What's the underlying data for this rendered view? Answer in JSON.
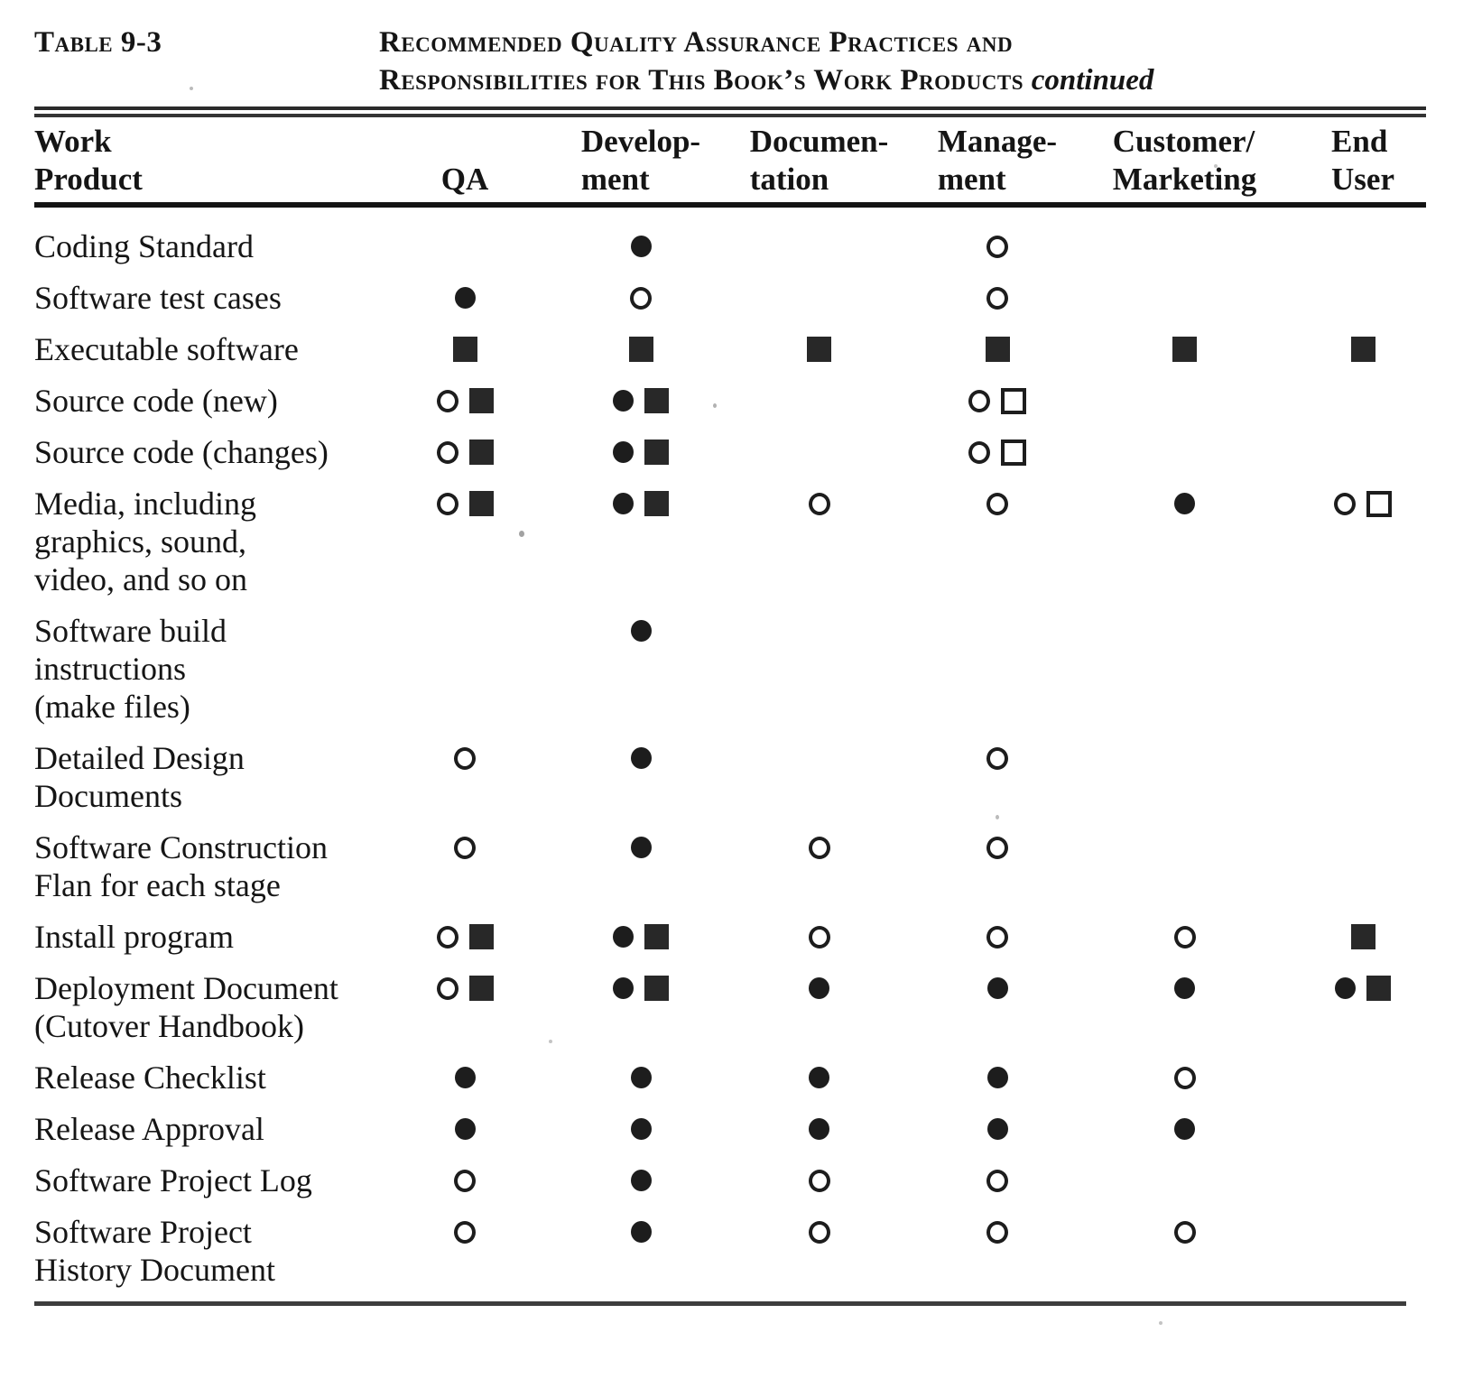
{
  "page": {
    "label": "Table 9-3",
    "title": {
      "line1": "Recommended Quality Assurance Practices and",
      "line2": "Responsibilities for This Book’s Work Products",
      "continued": "continued"
    }
  },
  "table": {
    "columns": [
      {
        "id": "work_product",
        "lines": [
          "Work",
          "Product"
        ]
      },
      {
        "id": "qa",
        "lines": [
          "QA"
        ]
      },
      {
        "id": "development",
        "lines": [
          "Develop-",
          "ment"
        ]
      },
      {
        "id": "documentation",
        "lines": [
          "Documen-",
          "tation"
        ]
      },
      {
        "id": "management",
        "lines": [
          "Manage-",
          "ment"
        ]
      },
      {
        "id": "customer_marketing",
        "lines": [
          "Customer/",
          "Marketing"
        ]
      },
      {
        "id": "end_user",
        "lines": [
          "End",
          "User"
        ]
      }
    ],
    "symbol_legend": {
      "fc": "filled-circle",
      "oc": "open-circle",
      "fs": "filled-square",
      "os": "open-square"
    },
    "rows": [
      {
        "product_lines": [
          "Coding Standard"
        ],
        "cells": [
          [],
          [
            "fc"
          ],
          [],
          [
            "oc"
          ],
          [],
          []
        ]
      },
      {
        "product_lines": [
          "Software test cases"
        ],
        "cells": [
          [
            "fc"
          ],
          [
            "oc"
          ],
          [],
          [
            "oc"
          ],
          [],
          []
        ]
      },
      {
        "product_lines": [
          "Executable software"
        ],
        "cells": [
          [
            "fs"
          ],
          [
            "fs"
          ],
          [
            "fs"
          ],
          [
            "fs"
          ],
          [
            "fs"
          ],
          [
            "fs"
          ]
        ]
      },
      {
        "product_lines": [
          "Source code (new)"
        ],
        "cells": [
          [
            "oc",
            "fs"
          ],
          [
            "fc",
            "fs"
          ],
          [],
          [
            "oc",
            "os"
          ],
          [],
          []
        ]
      },
      {
        "product_lines": [
          "Source code (changes)"
        ],
        "cells": [
          [
            "oc",
            "fs"
          ],
          [
            "fc",
            "fs"
          ],
          [],
          [
            "oc",
            "os"
          ],
          [],
          []
        ]
      },
      {
        "product_lines": [
          "Media, including",
          "graphics, sound,",
          "video, and so on"
        ],
        "cells": [
          [
            "oc",
            "fs"
          ],
          [
            "fc",
            "fs"
          ],
          [
            "oc"
          ],
          [
            "oc"
          ],
          [
            "fc"
          ],
          [
            "oc",
            "os"
          ]
        ]
      },
      {
        "product_lines": [
          "Software build",
          "instructions",
          "(make files)"
        ],
        "cells": [
          [],
          [
            "fc"
          ],
          [],
          [],
          [],
          []
        ]
      },
      {
        "product_lines": [
          "Detailed Design",
          "Documents"
        ],
        "cells": [
          [
            "oc"
          ],
          [
            "fc"
          ],
          [],
          [
            "oc"
          ],
          [],
          []
        ]
      },
      {
        "product_lines": [
          "Software Construction",
          "Flan for each stage"
        ],
        "cells": [
          [
            "oc"
          ],
          [
            "fc"
          ],
          [
            "oc"
          ],
          [
            "oc"
          ],
          [],
          []
        ]
      },
      {
        "product_lines": [
          "Install program"
        ],
        "cells": [
          [
            "oc",
            "fs"
          ],
          [
            "fc",
            "fs"
          ],
          [
            "oc"
          ],
          [
            "oc"
          ],
          [
            "oc"
          ],
          [
            "fs"
          ]
        ]
      },
      {
        "product_lines": [
          "Deployment Document",
          "(Cutover Handbook)"
        ],
        "cells": [
          [
            "oc",
            "fs"
          ],
          [
            "fc",
            "fs"
          ],
          [
            "fc"
          ],
          [
            "fc"
          ],
          [
            "fc"
          ],
          [
            "fc",
            "fs"
          ]
        ]
      },
      {
        "product_lines": [
          "Release Checklist"
        ],
        "cells": [
          [
            "fc"
          ],
          [
            "fc"
          ],
          [
            "fc"
          ],
          [
            "fc"
          ],
          [
            "oc"
          ],
          []
        ]
      },
      {
        "product_lines": [
          "Release Approval"
        ],
        "cells": [
          [
            "fc"
          ],
          [
            "fc"
          ],
          [
            "fc"
          ],
          [
            "fc"
          ],
          [
            "fc"
          ],
          []
        ]
      },
      {
        "product_lines": [
          "Software Project Log"
        ],
        "cells": [
          [
            "oc"
          ],
          [
            "fc"
          ],
          [
            "oc"
          ],
          [
            "oc"
          ],
          [],
          []
        ]
      },
      {
        "product_lines": [
          "Software Project",
          "History Document"
        ],
        "cells": [
          [
            "oc"
          ],
          [
            "fc"
          ],
          [
            "oc"
          ],
          [
            "oc"
          ],
          [
            "oc"
          ],
          []
        ]
      }
    ]
  }
}
